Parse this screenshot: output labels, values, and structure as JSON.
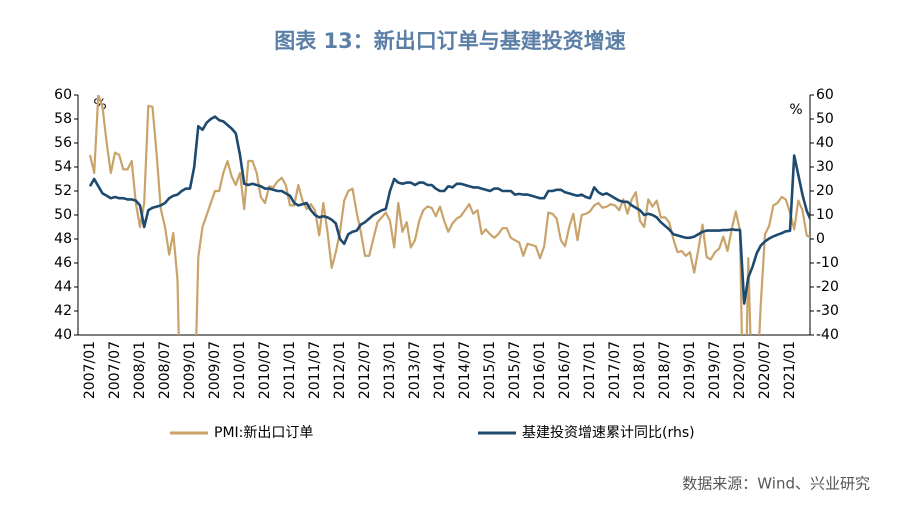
{
  "chart_data": {
    "type": "line",
    "title": "图表 13：新出口订单与基建投资增速",
    "source": "数据来源：Wind、兴业研究",
    "ylabel": "%",
    "y2label": "%",
    "categories": [
      "2007/01",
      null,
      null,
      null,
      null,
      null,
      "2007/07",
      null,
      null,
      null,
      null,
      null,
      "2008/01",
      null,
      null,
      null,
      null,
      null,
      "2008/07",
      null,
      null,
      null,
      null,
      null,
      "2009/01",
      null,
      null,
      null,
      null,
      null,
      "2009/07",
      null,
      null,
      null,
      null,
      null,
      "2010/01",
      null,
      null,
      null,
      null,
      null,
      "2010/07",
      null,
      null,
      null,
      null,
      null,
      "2011/01",
      null,
      null,
      null,
      null,
      null,
      "2011/07",
      null,
      null,
      null,
      null,
      null,
      "2012/01",
      null,
      null,
      null,
      null,
      null,
      "2012/07",
      null,
      null,
      null,
      null,
      null,
      "2013/01",
      null,
      null,
      null,
      null,
      null,
      "2013/07",
      null,
      null,
      null,
      null,
      null,
      "2014/01",
      null,
      null,
      null,
      null,
      null,
      "2014/07",
      null,
      null,
      null,
      null,
      null,
      "2015/01",
      null,
      null,
      null,
      null,
      null,
      "2015/07",
      null,
      null,
      null,
      null,
      null,
      "2016/01",
      null,
      null,
      null,
      null,
      null,
      "2016/07",
      null,
      null,
      null,
      null,
      null,
      "2017/01",
      null,
      null,
      null,
      null,
      null,
      "2017/07",
      null,
      null,
      null,
      null,
      null,
      "2018/01",
      null,
      null,
      null,
      null,
      null,
      "2018/07",
      null,
      null,
      null,
      null,
      null,
      "2019/01",
      null,
      null,
      null,
      null,
      null,
      "2019/07",
      null,
      null,
      null,
      null,
      null,
      "2020/01",
      null,
      null,
      null,
      null,
      null,
      "2020/07",
      null,
      null,
      null,
      null,
      null,
      "2021/01",
      null,
      null,
      null,
      null,
      null
    ],
    "series": [
      {
        "name": "PMI:新出口订单",
        "color": "#c9a36a",
        "values": [
          55,
          53.5,
          60,
          59,
          56,
          53.5,
          55.2,
          55,
          53.8,
          53.8,
          54.5,
          51,
          49,
          51,
          59.1,
          59,
          55,
          50.5,
          49,
          46.7,
          48.5,
          44.6,
          29,
          33.7,
          38,
          33,
          46.5,
          49,
          50,
          51,
          52,
          52,
          53.5,
          54.5,
          53.2,
          52.5,
          53.5,
          50.5,
          54.5,
          54.5,
          53.5,
          51.5,
          51,
          52.4,
          52.3,
          52.8,
          53.1,
          52.5,
          50.8,
          50.8,
          52.5,
          51.2,
          50.5,
          50.9,
          50.4,
          48.3,
          51,
          48.6,
          45.6,
          46.9,
          48.6,
          51.2,
          52,
          52.2,
          50.2,
          48.6,
          46.6,
          46.6,
          48,
          49.4,
          49.8,
          50.2,
          49.5,
          47.3,
          51,
          48.6,
          49.4,
          47.3,
          47.9,
          49.5,
          50.4,
          50.7,
          50.6,
          49.9,
          50.7,
          49.5,
          48.6,
          49.3,
          49.7,
          49.9,
          50.4,
          50.9,
          50.1,
          50.4,
          48.4,
          48.8,
          48.4,
          48.1,
          48.4,
          48.9,
          48.9,
          48.1,
          47.9,
          47.7,
          46.6,
          47.6,
          47.5,
          47.4,
          46.4,
          47.4,
          50.2,
          50.1,
          49.7,
          47.9,
          47.4,
          49,
          50.1,
          47.9,
          50,
          50.1,
          50.3,
          50.8,
          51,
          50.6,
          50.7,
          50.9,
          50.8,
          50.4,
          51.3,
          50.1,
          51.3,
          51.9,
          49.5,
          49,
          51.3,
          50.7,
          51.2,
          49.8,
          49.8,
          49.4,
          48,
          46.9,
          47,
          46.6,
          46.9,
          45.2,
          47.1,
          49.2,
          46.5,
          46.3,
          46.9,
          47.2,
          48.2,
          47,
          48.8,
          50.3,
          48.7,
          28.7,
          46.4,
          33.5,
          35.3,
          42.6,
          48.4,
          49.1,
          50.8,
          51,
          51.5,
          51.3,
          50.2,
          48.8,
          51.2,
          50.4,
          48.3,
          48.1
        ]
      },
      {
        "name": "基建投资增速累计同比(rhs)",
        "color": "#1d4a6e",
        "axis": "y2",
        "values": [
          22,
          25,
          22,
          19,
          18,
          17,
          17.5,
          17,
          17,
          16.5,
          16.5,
          16,
          14,
          5,
          12,
          13,
          13.5,
          14,
          15,
          17,
          18,
          18.5,
          20,
          21,
          21,
          30,
          47,
          45.5,
          48.5,
          50,
          51,
          49.5,
          49,
          47.5,
          46,
          44,
          35,
          23,
          22.5,
          23,
          22.5,
          22,
          21,
          21,
          20.5,
          20,
          20,
          19,
          18,
          15,
          14,
          14.5,
          15,
          12,
          10,
          9,
          9.5,
          9,
          8,
          6.5,
          0,
          -2,
          2,
          3,
          3.5,
          6,
          7,
          8.5,
          10,
          11,
          12,
          12.5,
          20,
          25,
          23.5,
          23,
          23.5,
          23.5,
          22.5,
          23.5,
          23.5,
          22.5,
          22.5,
          21,
          20,
          20,
          22,
          21.5,
          23,
          23,
          22.5,
          22,
          21.5,
          21.5,
          21,
          20.5,
          20,
          21,
          21,
          20,
          20,
          20,
          18.5,
          18.8,
          18.5,
          18.5,
          18,
          17.5,
          17,
          17,
          20,
          20,
          20.5,
          20.5,
          19.5,
          19,
          18.5,
          18,
          18.5,
          17.5,
          17,
          21.5,
          19.5,
          18.5,
          19,
          18,
          17,
          16,
          15.5,
          15.5,
          14,
          13,
          12,
          10,
          10.5,
          10,
          9,
          7,
          5.5,
          4,
          2,
          1.5,
          1,
          0.5,
          0.5,
          1,
          2,
          3,
          3.5,
          3.5,
          3.5,
          3.5,
          3.7,
          3.7,
          4,
          3.8,
          3.8,
          -26.9,
          -16,
          -11.6,
          -6,
          -2.7,
          -1,
          0.2,
          1.1,
          1.8,
          2.4,
          3.2,
          3.4,
          34.8,
          26.7,
          18.4,
          11.8,
          7.8
        ]
      }
    ],
    "ylim": [
      40,
      60
    ],
    "yticks": [
      40,
      42,
      44,
      46,
      48,
      50,
      52,
      54,
      56,
      58,
      60
    ],
    "y2lim": [
      -40,
      60
    ],
    "y2ticks": [
      -40,
      -30,
      -20,
      -10,
      0,
      10,
      20,
      30,
      40,
      50,
      60
    ],
    "legend": "bottom"
  }
}
